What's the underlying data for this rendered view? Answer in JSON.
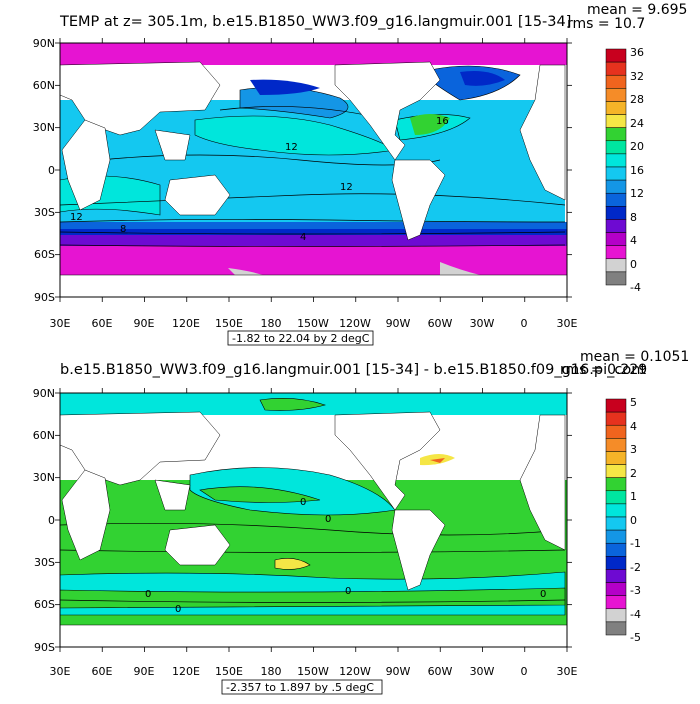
{
  "panels": [
    {
      "title": "TEMP at z= 305.1m, b.e15.B1850_WW3.f09_g16.langmuir.001 [15-34]",
      "stats": {
        "mean": "mean = 9.695",
        "rms": "rms = 10.7"
      },
      "range_note": "-1.82 to 22.04 by 2 degC",
      "lat_ticks": [
        "90N",
        "60N",
        "30N",
        "0",
        "30S",
        "60S",
        "90S"
      ],
      "lon_ticks": [
        "30E",
        "60E",
        "90E",
        "120E",
        "150E",
        "180",
        "150W",
        "120W",
        "90W",
        "60W",
        "30W",
        "0",
        "30E"
      ],
      "colorbar_labels": [
        "36",
        "32",
        "28",
        "24",
        "20",
        "16",
        "12",
        "8",
        "4",
        "0",
        "-4"
      ],
      "colorbar_colors": [
        "#c8001e",
        "#e6321e",
        "#f0641e",
        "#f58c28",
        "#f5b428",
        "#f5e646",
        "#32d232",
        "#00e6a0",
        "#00e6dc",
        "#14c8f0",
        "#1496e6",
        "#0a64dc",
        "#0028c8",
        "#6e0ad2",
        "#b400c8",
        "#e614d2",
        "#d2d2d2",
        "#808080"
      ],
      "contour_labels": [
        "16",
        "12",
        "12",
        "12",
        "8",
        "4"
      ]
    },
    {
      "title": "b.e15.B1850_WW3.f09_g16.langmuir.001 [15-34] - b.e15.B1850.f09_g16.pi_cont",
      "stats": {
        "mean": "mean = 0.1051",
        "rms": "rms = 0.229"
      },
      "range_note": "-2.357 to 1.897 by .5 degC",
      "lat_ticks": [
        "90N",
        "60N",
        "30N",
        "0",
        "30S",
        "60S",
        "90S"
      ],
      "lon_ticks": [
        "30E",
        "60E",
        "90E",
        "120E",
        "150E",
        "180",
        "150W",
        "120W",
        "90W",
        "60W",
        "30W",
        "0",
        "30E"
      ],
      "colorbar_labels": [
        "5",
        "4",
        "3",
        "2",
        "1",
        "0",
        "-1",
        "-2",
        "-3",
        "-4",
        "-5"
      ],
      "colorbar_colors": [
        "#c8001e",
        "#e6321e",
        "#f0641e",
        "#f58c28",
        "#f5b428",
        "#f5e646",
        "#32d232",
        "#00e6a0",
        "#00e6dc",
        "#14c8f0",
        "#1496e6",
        "#0a64dc",
        "#0028c8",
        "#6e0ad2",
        "#b400c8",
        "#e614d2",
        "#d2d2d2",
        "#808080"
      ],
      "contour_labels": [
        "0",
        "0",
        "0",
        "0",
        "0",
        "0"
      ]
    }
  ]
}
